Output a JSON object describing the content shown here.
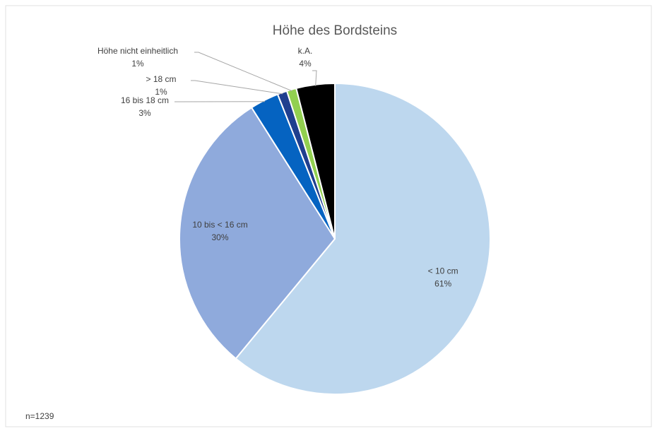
{
  "chart_data": {
    "type": "pie",
    "title": "Höhe des Bordsteins",
    "categories": [
      "< 10 cm",
      "10 bis < 16 cm",
      "16 bis 18 cm",
      "> 18 cm",
      "Höhe nicht einheitlich",
      "k.A."
    ],
    "values": [
      61,
      30,
      3,
      1,
      1,
      4
    ],
    "value_labels": [
      "61%",
      "30%",
      "3%",
      "1%",
      "1%",
      "4%"
    ],
    "colors": [
      "#bdd7ee",
      "#8faadc",
      "#0563c1",
      "#1f3f8f",
      "#92d050",
      "#000000"
    ],
    "annotation": "n=1239"
  }
}
